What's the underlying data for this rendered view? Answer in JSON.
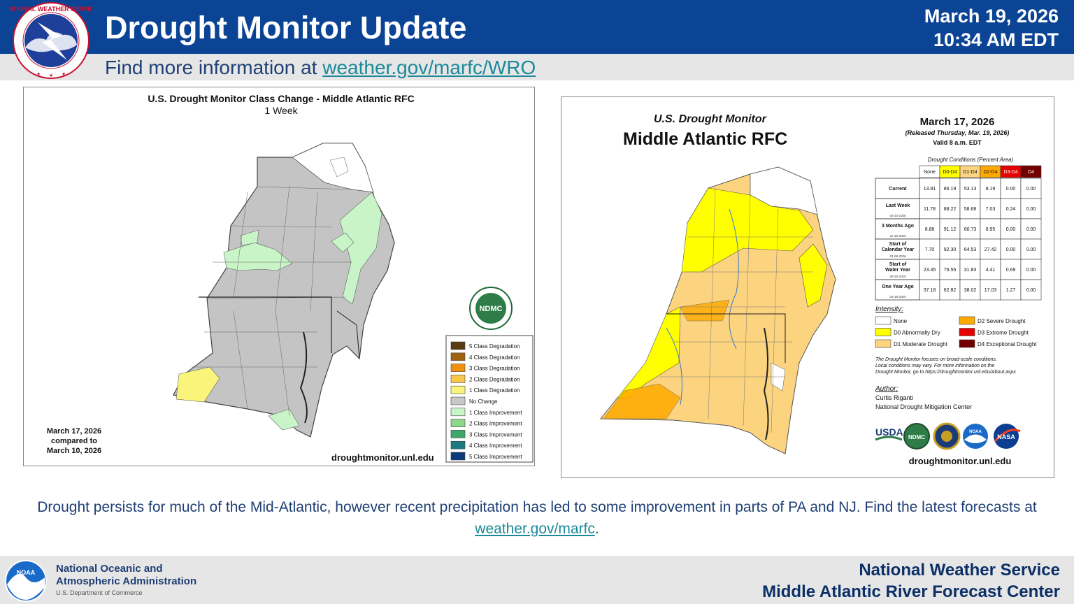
{
  "header": {
    "title": "Drought Monitor Update",
    "date": "March 19, 2026",
    "time": "10:34 AM EDT",
    "logo_text": "NATIONAL WEATHER SERVICE"
  },
  "subheader": {
    "prefix": "Find more information at ",
    "link": "weather.gov/marfc/WRO"
  },
  "left_map": {
    "title": "U.S. Drought Monitor Class Change - Middle Atlantic RFC",
    "subtitle": "1 Week",
    "compare_line1": "March 17, 2026",
    "compare_line2": "compared to",
    "compare_line3": "March 10, 2026",
    "source": "droughtmonitor.unl.edu",
    "ndmc": "NDMC",
    "legend": [
      {
        "label": "5 Class Degradation",
        "color": "#5a3a10"
      },
      {
        "label": "4 Class Degradation",
        "color": "#a0620f"
      },
      {
        "label": "3 Class Degradation",
        "color": "#f0900f"
      },
      {
        "label": "2 Class Degradation",
        "color": "#f8c84a"
      },
      {
        "label": "1 Class Degradation",
        "color": "#faf47a"
      },
      {
        "label": "No Change",
        "color": "#c8c8c8"
      },
      {
        "label": "1 Class Improvement",
        "color": "#c8f4c8"
      },
      {
        "label": "2 Class Improvement",
        "color": "#8ed88e"
      },
      {
        "label": "3 Class Improvement",
        "color": "#3ea86a"
      },
      {
        "label": "4 Class Improvement",
        "color": "#1a7a80"
      },
      {
        "label": "5 Class Improvement",
        "color": "#0a3a7a"
      }
    ]
  },
  "right_map": {
    "title1": "U.S. Drought Monitor",
    "title2": "Middle Atlantic RFC",
    "date": "March 17, 2026",
    "released": "(Released Thursday, Mar. 19, 2026)",
    "valid": "Valid 8 a.m. EDT",
    "table_caption": "Drought Conditions (Percent Area)",
    "columns": [
      {
        "label": "None",
        "color": "#ffffff"
      },
      {
        "label": "D0-D4",
        "color": "#ffff00"
      },
      {
        "label": "D1-D4",
        "color": "#fcd37f"
      },
      {
        "label": "D2-D4",
        "color": "#ffaa00"
      },
      {
        "label": "D3-D4",
        "color": "#e60000"
      },
      {
        "label": "D4",
        "color": "#730000"
      }
    ],
    "rows": [
      {
        "label": "Current",
        "sub": "",
        "values": [
          "13.81",
          "86.19",
          "53.13",
          "8.19",
          "0.00",
          "0.00"
        ]
      },
      {
        "label": "Last Week",
        "sub": "03-10-2026",
        "values": [
          "11.78",
          "88.22",
          "58.68",
          "7.03",
          "0.24",
          "0.00"
        ]
      },
      {
        "label": "3 Months Ago",
        "sub": "12-16-2025",
        "values": [
          "8.88",
          "91.12",
          "60.73",
          "8.95",
          "0.00",
          "0.00"
        ]
      },
      {
        "label": "Start of Calendar Year",
        "sub": "01-06-2026",
        "values": [
          "7.70",
          "92.30",
          "64.53",
          "27.42",
          "0.00",
          "0.00"
        ]
      },
      {
        "label": "Start of Water Year",
        "sub": "09-30-2025",
        "values": [
          "23.45",
          "76.55",
          "31.83",
          "4.41",
          "0.69",
          "0.00"
        ]
      },
      {
        "label": "One Year Ago",
        "sub": "03-18-2025",
        "values": [
          "37.18",
          "62.82",
          "38.02",
          "17.03",
          "1.27",
          "0.00"
        ]
      }
    ],
    "intensity_title": "Intensity:",
    "intensity": [
      {
        "label": "None",
        "color": "#ffffff"
      },
      {
        "label": "D0 Abnormally Dry",
        "color": "#ffff00"
      },
      {
        "label": "D1 Moderate Drought",
        "color": "#fcd37f"
      },
      {
        "label": "D2 Severe Drought",
        "color": "#ffaa00"
      },
      {
        "label": "D3 Extreme Drought",
        "color": "#e60000"
      },
      {
        "label": "D4 Exceptional Drought",
        "color": "#730000"
      }
    ],
    "note1": "The Drought Monitor focuses on broad-scale conditions.",
    "note2": "Local conditions may vary. For more information on the",
    "note3": "Drought Monitor, go to https://droughtmonitor.unl.edu/About.aspx",
    "author_title": "Author:",
    "author_name": "Curtis Riganti",
    "author_org": "National Drought Mitigation Center",
    "logo_usda": "USDA",
    "logo_ndmc": "NDMC",
    "logo_noaa": "NOAA",
    "logo_nasa": "NASA",
    "source": "droughtmonitor.unl.edu"
  },
  "caption": {
    "text1": "Drought persists for much of the Mid-Atlantic, however recent precipitation has led to some improvement in parts of PA and NJ. Find the latest forecasts at ",
    "link": "weather.gov/marfc",
    "text2": "."
  },
  "footer": {
    "noaa_line1": "National Oceanic and",
    "noaa_line2": "Atmospheric Administration",
    "noaa_dept": "U.S. Department of Commerce",
    "noaa_logo_text": "NOAA",
    "right_line1": "National Weather Service",
    "right_line2": "Middle Atlantic River Forecast Center"
  }
}
